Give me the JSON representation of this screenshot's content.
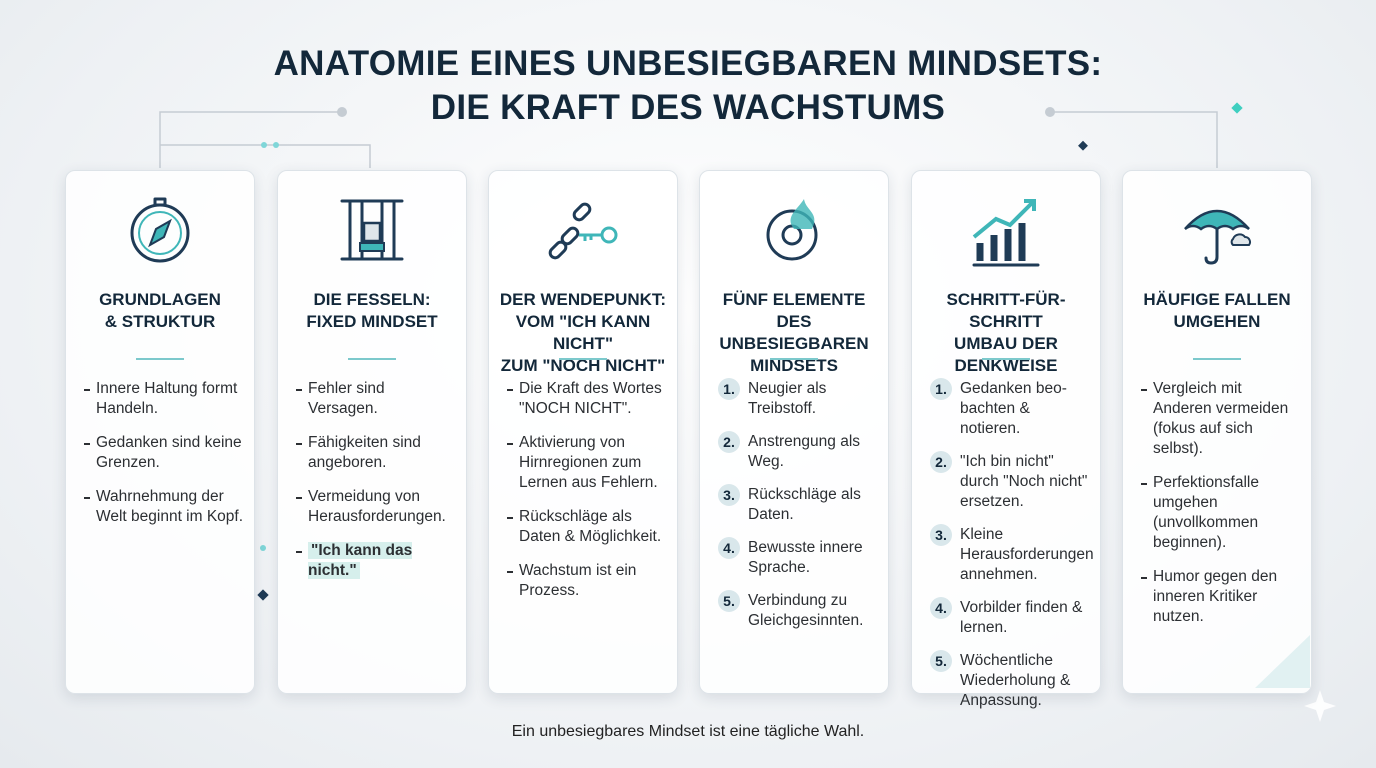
{
  "title": [
    "ANATOMIE EINES UNBESIEGBAREN MINDSETS:",
    "DIE KRAFT DES WACHSTUMS"
  ],
  "columns": [
    {
      "heading": [
        "GRUNDLAGEN",
        "& STRUKTUR"
      ],
      "items": [
        {
          "text": "Innere Haltung formt Handeln."
        },
        {
          "text": "Gedanken sind keine Grenzen."
        },
        {
          "text": "Wahrnehmung der Welt beginnt im Kopf."
        }
      ]
    },
    {
      "heading": [
        "DIE FESSELN:",
        "FIXED MINDSET"
      ],
      "items": [
        {
          "text": "Fehler sind Versagen."
        },
        {
          "text": "Fähigkeiten sind angeboren."
        },
        {
          "text": "Vermeidung von Herausforderungen."
        },
        {
          "text": "\"Ich kann das nicht.\"",
          "highlight": true
        }
      ]
    },
    {
      "heading": [
        "DER WENDEPUNKT:",
        "VOM \"ICH KANN NICHT\"",
        "ZUM \"NOCH NICHT\""
      ],
      "items": [
        {
          "text": "Die Kraft des Wortes \"NOCH NICHT\"."
        },
        {
          "text": "Aktivierung von Hirnregionen zum Lernen aus Fehlern."
        },
        {
          "text": "Rückschläge als Daten & Möglichkeit."
        },
        {
          "text": "Wachstum ist ein Prozess."
        }
      ]
    },
    {
      "heading": [
        "FÜNF ELEMENTE",
        "DES UNBESIEGBAREN",
        "MINDSETS"
      ],
      "items": [
        {
          "number": "1.",
          "text": "Neugier als Treibstoff."
        },
        {
          "number": "2.",
          "text": "Anstrengung als Weg."
        },
        {
          "number": "3.",
          "text": "Rückschläge als Daten."
        },
        {
          "number": "4.",
          "text": "Bewusste innere Sprache."
        },
        {
          "number": "5.",
          "text": "Verbindung zu Gleichgesinnten."
        }
      ]
    },
    {
      "heading": [
        "SCHRITT-FÜR-SCHRITT",
        "UMBAU DER",
        "DENKWEISE"
      ],
      "items": [
        {
          "number": "1.",
          "text": "Gedanken beo-bachten & notieren."
        },
        {
          "number": "2.",
          "text": "\"Ich bin nicht\" durch \"Noch nicht\" ersetzen."
        },
        {
          "number": "3.",
          "text": "Kleine Herausforderungen annehmen."
        },
        {
          "number": "4.",
          "text": "Vorbilder finden & lernen."
        },
        {
          "number": "5.",
          "text": "Wöchentliche Wiederholung & Anpassung."
        }
      ]
    },
    {
      "heading": [
        "HÄUFIGE FALLEN",
        "UMGEHEN"
      ],
      "items": [
        {
          "text": "Vergleich mit Anderen vermeiden (fokus auf sich selbst)."
        },
        {
          "text": "Perfektionsfalle umgehen (unvollkommen beginnen)."
        },
        {
          "text": "Humor gegen den inneren Kritiker nutzen."
        }
      ]
    }
  ],
  "footer": "Ein unbesiegbares Mindset ist eine tägliche Wahl."
}
